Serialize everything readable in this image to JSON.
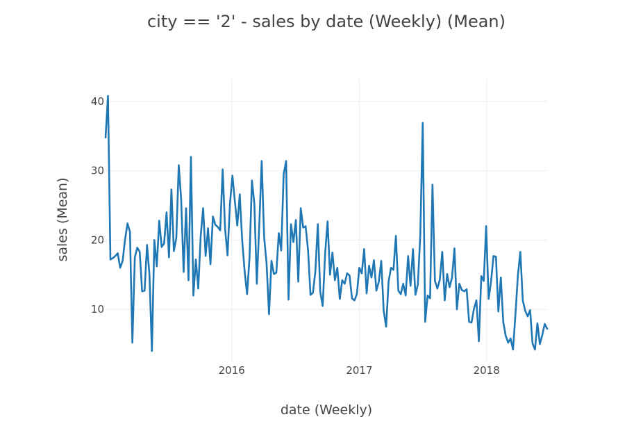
{
  "chart_data": {
    "type": "line",
    "title": "city == '2' - sales by date (Weekly) (Mean)",
    "xlabel": "date (Weekly)",
    "ylabel": "sales (Mean)",
    "x_start": "2015-01-04",
    "x_step_days": 7,
    "x_ticks": [
      {
        "value": "2016-01-01",
        "label": "2016"
      },
      {
        "value": "2017-01-01",
        "label": "2017"
      },
      {
        "value": "2018-01-01",
        "label": "2018"
      }
    ],
    "ylim": [
      2.5,
      43.3
    ],
    "y_ticks": [
      10,
      20,
      30,
      40
    ],
    "grid": true,
    "colors": {
      "series": "#1f77b4",
      "grid": "#eeeeee",
      "text": "#444444"
    },
    "series": [
      {
        "values": [
          34.8,
          40.8,
          17.2,
          17.4,
          17.7,
          18.1,
          16.0,
          17.0,
          20.1,
          22.4,
          21.2,
          5.2,
          17.5,
          18.9,
          18.3,
          12.6,
          12.7,
          19.3,
          15.0,
          4.0,
          20.0,
          16.2,
          22.8,
          19.0,
          19.5,
          24.0,
          17.5,
          27.3,
          18.4,
          20.3,
          30.8,
          25.8,
          15.4,
          24.6,
          14.2,
          32.0,
          12.0,
          17.2,
          13.0,
          20.6,
          24.6,
          17.7,
          21.7,
          16.5,
          23.4,
          22.2,
          21.9,
          21.4,
          30.2,
          21.6,
          17.8,
          25.3,
          29.3,
          25.6,
          22.1,
          26.6,
          20.0,
          15.5,
          12.2,
          17.4,
          28.6,
          25.2,
          13.7,
          22.1,
          31.4,
          20.4,
          16.6,
          9.3,
          17.0,
          15.1,
          15.3,
          21.0,
          18.5,
          29.5,
          31.4,
          11.4,
          22.3,
          19.7,
          22.9,
          14.0,
          24.6,
          21.8,
          22.0,
          18.5,
          12.1,
          12.4,
          15.5,
          22.3,
          12.5,
          10.5,
          18.1,
          22.7,
          15.0,
          18.2,
          14.2,
          16.0,
          11.5,
          14.2,
          13.7,
          15.2,
          14.9,
          11.6,
          11.3,
          12.2,
          16.0,
          15.2,
          18.7,
          12.3,
          16.3,
          14.6,
          17.1,
          12.7,
          14.0,
          17.0,
          9.8,
          7.5,
          14.0,
          16.0,
          15.7,
          20.6,
          12.7,
          12.2,
          13.7,
          12.0,
          17.7,
          13.4,
          18.7,
          12.1,
          13.6,
          20.7,
          36.9,
          8.2,
          12.0,
          11.6,
          28.0,
          14.1,
          13.0,
          14.3,
          18.3,
          11.3,
          15.1,
          13.2,
          14.6,
          18.8,
          10.0,
          13.7,
          12.8,
          12.6,
          12.9,
          8.2,
          8.1,
          10.1,
          11.3,
          5.4,
          14.8,
          14.1,
          22.0,
          11.5,
          14.0,
          17.7,
          17.6,
          9.7,
          14.6,
          8.2,
          6.2,
          5.2,
          5.8,
          4.2,
          9.3,
          14.9,
          18.3,
          11.3,
          9.8,
          9.0,
          9.9,
          5.1,
          4.2,
          8.0,
          5.0,
          6.3,
          7.9,
          7.2
        ]
      }
    ]
  }
}
